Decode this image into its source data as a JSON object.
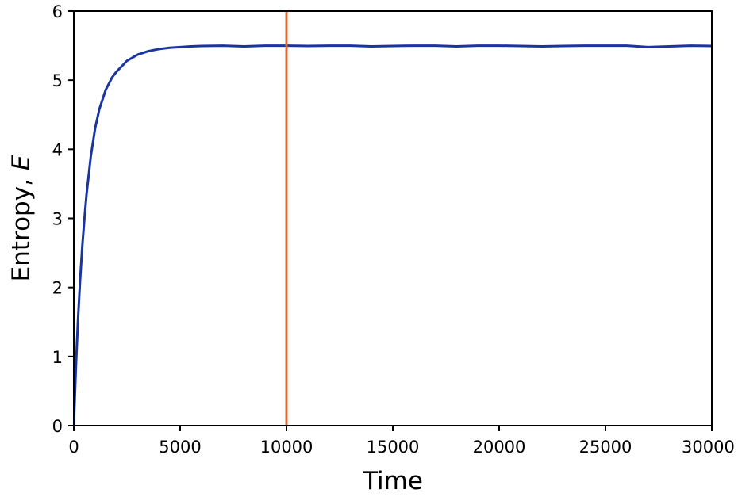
{
  "chart_data": {
    "type": "line",
    "title": "",
    "xlabel": "Time",
    "ylabel_text": "Entropy, ",
    "ylabel_symbol": "E",
    "xlim": [
      0,
      30000
    ],
    "ylim": [
      0,
      6
    ],
    "x_ticks": [
      "0",
      "5000",
      "10000",
      "15000",
      "20000",
      "25000",
      "30000"
    ],
    "y_ticks": [
      "0",
      "1",
      "2",
      "3",
      "4",
      "5",
      "6"
    ],
    "x_tick_values": [
      0,
      5000,
      10000,
      15000,
      20000,
      25000,
      30000
    ],
    "y_tick_values": [
      0,
      1,
      2,
      3,
      4,
      5,
      6
    ],
    "grid": false,
    "series": [
      {
        "color": "#1a34a0",
        "x": [
          0,
          100,
          200,
          300,
          400,
          500,
          600,
          800,
          1000,
          1200,
          1500,
          1800,
          2000,
          2500,
          3000,
          3500,
          4000,
          4500,
          5000,
          5500,
          6000,
          7000,
          8000,
          9000,
          10000,
          11000,
          12000,
          13000,
          14000,
          15000,
          16000,
          17000,
          18000,
          19000,
          20000,
          21000,
          22000,
          23000,
          24000,
          25000,
          26000,
          27000,
          28000,
          29000,
          30000
        ],
        "y": [
          0,
          0.85,
          1.55,
          2.12,
          2.6,
          3.0,
          3.35,
          3.9,
          4.3,
          4.58,
          4.86,
          5.04,
          5.12,
          5.28,
          5.37,
          5.42,
          5.45,
          5.47,
          5.48,
          5.49,
          5.495,
          5.5,
          5.49,
          5.5,
          5.5,
          5.495,
          5.5,
          5.5,
          5.49,
          5.495,
          5.5,
          5.5,
          5.49,
          5.5,
          5.5,
          5.495,
          5.49,
          5.495,
          5.5,
          5.5,
          5.5,
          5.48,
          5.49,
          5.5,
          5.495
        ]
      }
    ],
    "vline": {
      "x": 10000,
      "color": "#d96a36"
    }
  }
}
